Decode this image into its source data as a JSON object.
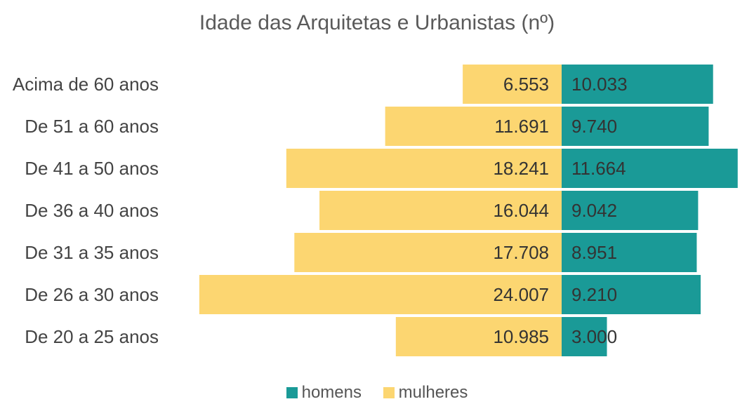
{
  "chart_data": {
    "type": "bar",
    "orientation": "horizontal-population-pyramid",
    "title": "Idade das Arquitetas e Urbanistas (nº)",
    "categories": [
      "Acima de 60 anos",
      "De 51 a 60 anos",
      "De 41 a 50 anos",
      "De 36 a 40 anos",
      "De 31 a 35 anos",
      "De 26 a 30 anos",
      "De 20 a 25 anos"
    ],
    "series": [
      {
        "name": "homens",
        "color": "#1a9a97",
        "side": "right",
        "values": [
          10033,
          9740,
          11664,
          9042,
          8951,
          9210,
          3000
        ],
        "labels": [
          "10.033",
          "9.740",
          "11.664",
          "9.042",
          "8.951",
          "9.210",
          "3.000"
        ]
      },
      {
        "name": "mulheres",
        "color": "#fcd671",
        "side": "left",
        "values": [
          6553,
          11691,
          18241,
          16044,
          17708,
          24007,
          10985
        ],
        "labels": [
          "6.553",
          "11.691",
          "18.241",
          "16.044",
          "17.708",
          "24.007",
          "10.985"
        ]
      }
    ],
    "legend_position": "bottom",
    "grid": false
  }
}
